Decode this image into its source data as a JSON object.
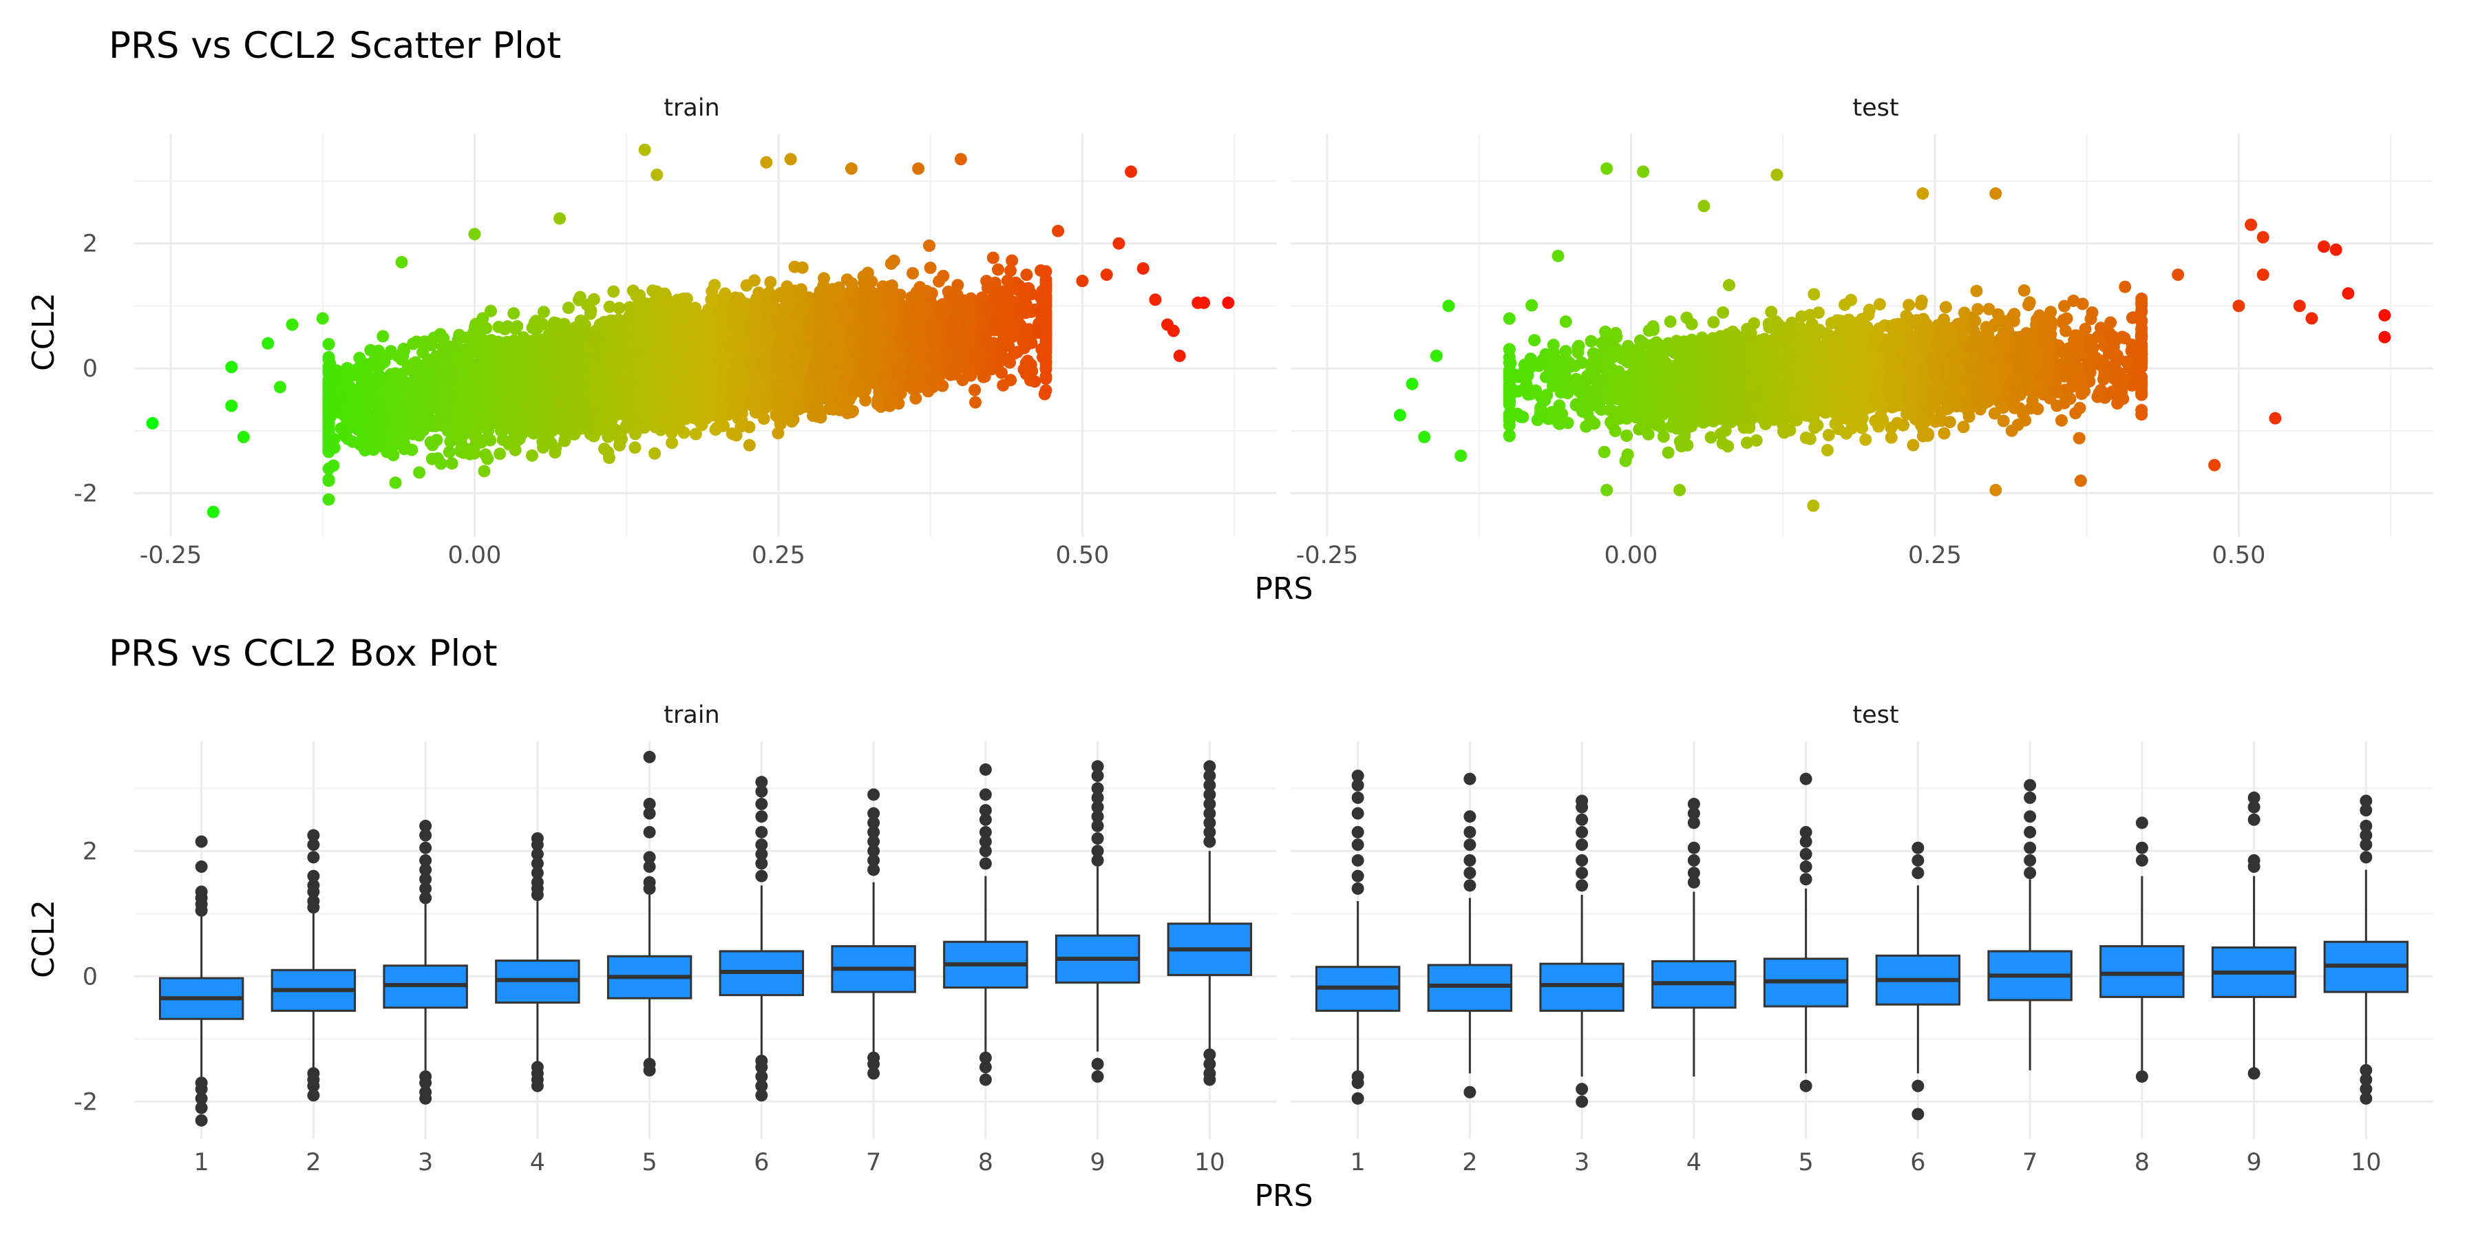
{
  "chart_data": [
    {
      "type": "scatter",
      "title": "PRS vs CCL2 Scatter Plot",
      "xlabel": "PRS",
      "ylabel": "CCL2",
      "xlim": [
        -0.28,
        0.66
      ],
      "ylim": [
        -2.7,
        3.75
      ],
      "x_ticks": [
        "-0.25",
        "0.00",
        "0.25",
        "0.50"
      ],
      "x_tick_values": [
        -0.25,
        0,
        0.25,
        0.5
      ],
      "y_ticks": [
        "-2",
        "0",
        "2"
      ],
      "y_tick_values": [
        -2,
        0,
        2
      ],
      "grid": true,
      "legend": "none",
      "color_scale": {
        "low": "#00ff00",
        "mid": "#c8b400",
        "high": "#ff0000",
        "mapped_to": "PRS"
      },
      "panels": [
        {
          "name": "train",
          "cloud": {
            "x_min": -0.12,
            "x_max": 0.47,
            "slope": 2.3,
            "intercept": -0.35,
            "sd": 0.75,
            "n": 8000
          },
          "outliers": [
            {
              "x": -0.265,
              "y": -0.88
            },
            {
              "x": -0.215,
              "y": -2.3
            },
            {
              "x": -0.2,
              "y": 0.02
            },
            {
              "x": -0.2,
              "y": -0.6
            },
            {
              "x": -0.19,
              "y": -1.1
            },
            {
              "x": -0.17,
              "y": 0.4
            },
            {
              "x": -0.16,
              "y": -0.3
            },
            {
              "x": -0.15,
              "y": 0.7
            },
            {
              "x": -0.125,
              "y": 0.8
            },
            {
              "x": -0.12,
              "y": -1.8
            },
            {
              "x": -0.12,
              "y": -2.1
            },
            {
              "x": -0.06,
              "y": 1.7
            },
            {
              "x": 0.0,
              "y": 2.15
            },
            {
              "x": 0.07,
              "y": 2.4
            },
            {
              "x": 0.14,
              "y": 3.5
            },
            {
              "x": 0.15,
              "y": 3.1
            },
            {
              "x": 0.24,
              "y": 3.3
            },
            {
              "x": 0.26,
              "y": 3.35
            },
            {
              "x": 0.31,
              "y": 3.2
            },
            {
              "x": 0.365,
              "y": 3.2
            },
            {
              "x": 0.4,
              "y": 3.35
            },
            {
              "x": 0.48,
              "y": 2.2
            },
            {
              "x": 0.5,
              "y": 1.4
            },
            {
              "x": 0.52,
              "y": 1.5
            },
            {
              "x": 0.53,
              "y": 2.0
            },
            {
              "x": 0.54,
              "y": 3.15
            },
            {
              "x": 0.55,
              "y": 1.6
            },
            {
              "x": 0.56,
              "y": 1.1
            },
            {
              "x": 0.57,
              "y": 0.7
            },
            {
              "x": 0.575,
              "y": 0.6
            },
            {
              "x": 0.58,
              "y": 0.2
            },
            {
              "x": 0.595,
              "y": 1.05
            },
            {
              "x": 0.6,
              "y": 1.05
            },
            {
              "x": 0.62,
              "y": 1.05
            }
          ]
        },
        {
          "name": "test",
          "cloud": {
            "x_min": -0.1,
            "x_max": 0.42,
            "slope": 1.0,
            "intercept": -0.25,
            "sd": 0.7,
            "n": 3500
          },
          "outliers": [
            {
              "x": -0.19,
              "y": -0.75
            },
            {
              "x": -0.18,
              "y": -0.25
            },
            {
              "x": -0.17,
              "y": -1.1
            },
            {
              "x": -0.16,
              "y": 0.2
            },
            {
              "x": -0.15,
              "y": 1.0
            },
            {
              "x": -0.14,
              "y": -1.4
            },
            {
              "x": -0.06,
              "y": 1.8
            },
            {
              "x": -0.02,
              "y": 3.2
            },
            {
              "x": -0.02,
              "y": -1.95
            },
            {
              "x": 0.01,
              "y": 3.15
            },
            {
              "x": 0.04,
              "y": -1.95
            },
            {
              "x": 0.06,
              "y": 2.6
            },
            {
              "x": 0.12,
              "y": 3.1
            },
            {
              "x": 0.15,
              "y": -2.2
            },
            {
              "x": 0.24,
              "y": 2.8
            },
            {
              "x": 0.3,
              "y": 2.8
            },
            {
              "x": 0.3,
              "y": -1.95
            },
            {
              "x": 0.37,
              "y": -1.8
            },
            {
              "x": 0.45,
              "y": 1.5
            },
            {
              "x": 0.48,
              "y": -1.55
            },
            {
              "x": 0.5,
              "y": 1.0
            },
            {
              "x": 0.51,
              "y": 2.3
            },
            {
              "x": 0.52,
              "y": 2.1
            },
            {
              "x": 0.52,
              "y": 1.5
            },
            {
              "x": 0.53,
              "y": -0.8
            },
            {
              "x": 0.55,
              "y": 1.0
            },
            {
              "x": 0.56,
              "y": 0.8
            },
            {
              "x": 0.57,
              "y": 1.95
            },
            {
              "x": 0.58,
              "y": 1.9
            },
            {
              "x": 0.59,
              "y": 1.2
            },
            {
              "x": 0.62,
              "y": 0.85
            },
            {
              "x": 0.62,
              "y": 0.5
            }
          ]
        }
      ]
    },
    {
      "type": "box",
      "title": "PRS vs CCL2 Box Plot",
      "xlabel": "PRS",
      "ylabel": "CCL2",
      "categories": [
        "1",
        "2",
        "3",
        "4",
        "5",
        "6",
        "7",
        "8",
        "9",
        "10"
      ],
      "ylim": [
        -2.6,
        3.75
      ],
      "y_ticks": [
        "-2",
        "0",
        "2"
      ],
      "y_tick_values": [
        -2,
        0,
        2
      ],
      "grid": true,
      "box_fill": "#1e90ff",
      "box_line": "#333333",
      "panels": [
        {
          "name": "train",
          "boxes": [
            {
              "q1": -0.68,
              "median": -0.35,
              "q3": -0.03,
              "lo": -1.6,
              "hi": 1.0,
              "outliers": [
                2.15,
                1.75,
                1.35,
                1.25,
                1.15,
                1.05,
                -1.7,
                -1.8,
                -1.95,
                -2.1,
                -2.3
              ]
            },
            {
              "q1": -0.55,
              "median": -0.22,
              "q3": 0.1,
              "lo": -1.5,
              "hi": 1.05,
              "outliers": [
                2.25,
                2.1,
                1.9,
                1.6,
                1.45,
                1.35,
                1.2,
                1.1,
                -1.55,
                -1.65,
                -1.75,
                -1.9
              ]
            },
            {
              "q1": -0.5,
              "median": -0.14,
              "q3": 0.17,
              "lo": -1.5,
              "hi": 1.15,
              "outliers": [
                2.4,
                2.25,
                2.05,
                1.85,
                1.7,
                1.55,
                1.4,
                1.25,
                -1.6,
                -1.7,
                -1.85,
                -1.95
              ]
            },
            {
              "q1": -0.42,
              "median": -0.06,
              "q3": 0.25,
              "lo": -1.4,
              "hi": 1.2,
              "outliers": [
                2.2,
                2.1,
                1.95,
                1.8,
                1.65,
                1.5,
                1.4,
                1.3,
                -1.45,
                -1.55,
                -1.65,
                -1.75
              ]
            },
            {
              "q1": -0.35,
              "median": -0.01,
              "q3": 0.32,
              "lo": -1.35,
              "hi": 1.3,
              "outliers": [
                3.5,
                2.75,
                2.6,
                2.3,
                1.9,
                1.75,
                1.5,
                1.4,
                -1.4,
                -1.5
              ]
            },
            {
              "q1": -0.3,
              "median": 0.07,
              "q3": 0.4,
              "lo": -1.3,
              "hi": 1.45,
              "outliers": [
                3.1,
                2.95,
                2.75,
                2.55,
                2.3,
                2.1,
                1.95,
                1.8,
                1.6,
                -1.35,
                -1.45,
                -1.6,
                -1.75,
                -1.9
              ]
            },
            {
              "q1": -0.25,
              "median": 0.12,
              "q3": 0.48,
              "lo": -1.25,
              "hi": 1.5,
              "outliers": [
                2.9,
                2.6,
                2.45,
                2.3,
                2.15,
                2.0,
                1.85,
                1.7,
                -1.3,
                -1.4,
                -1.55
              ]
            },
            {
              "q1": -0.18,
              "median": 0.19,
              "q3": 0.55,
              "lo": -1.2,
              "hi": 1.6,
              "outliers": [
                3.3,
                2.9,
                2.65,
                2.5,
                2.3,
                2.15,
                2.0,
                1.8,
                -1.3,
                -1.45,
                -1.65
              ]
            },
            {
              "q1": -0.1,
              "median": 0.28,
              "q3": 0.65,
              "lo": -1.2,
              "hi": 1.75,
              "outliers": [
                3.35,
                3.2,
                3.0,
                2.85,
                2.7,
                2.55,
                2.4,
                2.2,
                2.0,
                1.85,
                -1.4,
                -1.6
              ]
            },
            {
              "q1": 0.02,
              "median": 0.43,
              "q3": 0.84,
              "lo": -1.2,
              "hi": 2.0,
              "outliers": [
                3.35,
                3.2,
                3.05,
                2.9,
                2.75,
                2.6,
                2.45,
                2.3,
                2.15,
                -1.25,
                -1.4,
                -1.55,
                -1.65
              ]
            }
          ]
        },
        {
          "name": "test",
          "boxes": [
            {
              "q1": -0.55,
              "median": -0.18,
              "q3": 0.15,
              "lo": -1.55,
              "hi": 1.2,
              "outliers": [
                3.2,
                3.05,
                2.85,
                2.6,
                2.3,
                2.1,
                1.85,
                1.6,
                1.4,
                -1.6,
                -1.7,
                -1.95
              ]
            },
            {
              "q1": -0.55,
              "median": -0.15,
              "q3": 0.18,
              "lo": -1.55,
              "hi": 1.25,
              "outliers": [
                3.15,
                2.55,
                2.3,
                2.1,
                1.85,
                1.65,
                1.45,
                -1.85
              ]
            },
            {
              "q1": -0.55,
              "median": -0.14,
              "q3": 0.2,
              "lo": -1.6,
              "hi": 1.3,
              "outliers": [
                2.8,
                2.7,
                2.5,
                2.3,
                2.1,
                1.85,
                1.65,
                1.45,
                -1.8,
                -2.0
              ]
            },
            {
              "q1": -0.5,
              "median": -0.11,
              "q3": 0.24,
              "lo": -1.6,
              "hi": 1.35,
              "outliers": [
                2.75,
                2.6,
                2.45,
                2.05,
                1.85,
                1.65,
                1.5
              ]
            },
            {
              "q1": -0.48,
              "median": -0.08,
              "q3": 0.28,
              "lo": -1.55,
              "hi": 1.4,
              "outliers": [
                3.15,
                2.3,
                2.15,
                1.95,
                1.75,
                1.55,
                -1.75
              ]
            },
            {
              "q1": -0.45,
              "median": -0.06,
              "q3": 0.33,
              "lo": -1.55,
              "hi": 1.45,
              "outliers": [
                2.05,
                1.85,
                1.65,
                -1.75,
                -2.2
              ]
            },
            {
              "q1": -0.38,
              "median": 0.01,
              "q3": 0.4,
              "lo": -1.5,
              "hi": 1.55,
              "outliers": [
                3.05,
                2.85,
                2.55,
                2.3,
                2.05,
                1.85,
                1.65
              ]
            },
            {
              "q1": -0.33,
              "median": 0.04,
              "q3": 0.48,
              "lo": -1.5,
              "hi": 1.6,
              "outliers": [
                2.45,
                2.05,
                1.85,
                -1.6
              ]
            },
            {
              "q1": -0.33,
              "median": 0.06,
              "q3": 0.46,
              "lo": -1.5,
              "hi": 1.6,
              "outliers": [
                2.85,
                2.7,
                2.5,
                1.85,
                1.75,
                -1.55
              ]
            },
            {
              "q1": -0.25,
              "median": 0.17,
              "q3": 0.55,
              "lo": -1.4,
              "hi": 1.7,
              "outliers": [
                2.8,
                2.65,
                2.4,
                2.25,
                2.1,
                1.9,
                -1.5,
                -1.65,
                -1.8,
                -1.95
              ]
            }
          ]
        }
      ]
    }
  ]
}
